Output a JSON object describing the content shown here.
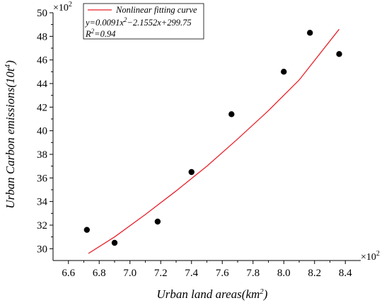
{
  "chart_data": {
    "type": "scatter",
    "xlabel_main": "Urban land areas(km",
    "xlabel_sup": "2",
    "xlabel_end": ")",
    "ylabel_main": "Urban Carbon emissions(10t",
    "ylabel_sup": "4",
    "ylabel_end": ")",
    "x_multiplier": "×10",
    "x_multiplier_exp": "2",
    "y_multiplier": "×10",
    "y_multiplier_exp": "2",
    "xlim": [
      6.5,
      8.5
    ],
    "ylim": [
      29,
      50
    ],
    "x_ticks": [
      "6.6",
      "6.8",
      "7.0",
      "7.2",
      "7.4",
      "7.6",
      "7.8",
      "8.0",
      "8.2",
      "8.4"
    ],
    "y_ticks": [
      "30",
      "32",
      "34",
      "36",
      "38",
      "40",
      "42",
      "44",
      "46",
      "48",
      "50"
    ],
    "points": [
      {
        "x": 6.72,
        "y": 31.6
      },
      {
        "x": 6.9,
        "y": 30.5
      },
      {
        "x": 7.18,
        "y": 32.3
      },
      {
        "x": 7.4,
        "y": 36.5
      },
      {
        "x": 7.66,
        "y": 41.4
      },
      {
        "x": 8.0,
        "y": 45.0
      },
      {
        "x": 8.17,
        "y": 48.3
      },
      {
        "x": 8.36,
        "y": 46.5
      }
    ],
    "fit_curve": {
      "name": "Nonlinear fitting curve",
      "x": [
        6.73,
        6.9,
        7.1,
        7.3,
        7.5,
        7.7,
        7.9,
        8.1,
        8.36
      ],
      "y": [
        29.6,
        31.0,
        32.9,
        34.9,
        37.0,
        39.3,
        41.7,
        44.3,
        48.6
      ],
      "color": "#e8202a"
    },
    "equation": {
      "a": "y=0.0091x",
      "a_sup": "2",
      "b": "−2.1552x+299.75"
    },
    "r2": {
      "a": "R",
      "a_sup": "2",
      "b": "=0.94"
    },
    "point_color": "#000000",
    "legend_position": "top-left"
  }
}
